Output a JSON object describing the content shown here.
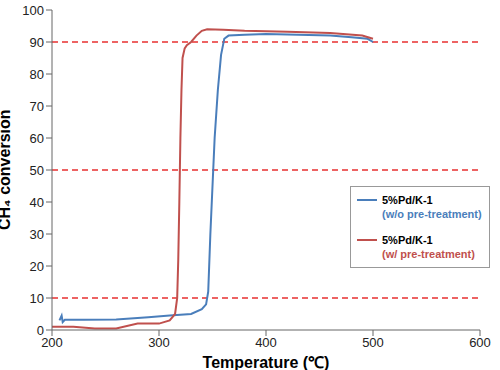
{
  "chart_data": {
    "type": "line",
    "x_label": "Temperature (℃)",
    "y_label": "CH₄ conversion",
    "xlim": [
      200,
      600
    ],
    "xticks": [
      200,
      300,
      400,
      500,
      600
    ],
    "ylim": [
      0,
      100
    ],
    "yticks": [
      0,
      10,
      20,
      30,
      40,
      50,
      60,
      70,
      80,
      90,
      100
    ],
    "grid": false,
    "legend": "right",
    "reference_lines": [
      10,
      50,
      90
    ],
    "reference_color": "#e83030",
    "series": [
      {
        "name": "5%Pd/K-1\n(w/o pre-treatment)",
        "color": "#4a7ebb",
        "x": [
          207,
          209,
          210,
          212,
          230,
          260,
          290,
          310,
          330,
          340,
          344,
          346,
          348,
          350,
          352,
          355,
          358,
          361,
          365,
          380,
          400,
          430,
          460,
          480,
          495,
          500
        ],
        "values": [
          3,
          4.5,
          2.5,
          3.2,
          3.2,
          3.3,
          4,
          4.5,
          5,
          6.5,
          8,
          12,
          30,
          45,
          60,
          75,
          86,
          91,
          92,
          92.3,
          92.5,
          92.3,
          92,
          91.5,
          91,
          90
        ]
      },
      {
        "name": "5%Pd/K-1\n(w/ pre-treatment)",
        "color": "#c0504d",
        "x": [
          200,
          220,
          240,
          260,
          280,
          300,
          310,
          315,
          317,
          318,
          319,
          320,
          321,
          322,
          324,
          326,
          330,
          335,
          340,
          345,
          360,
          380,
          420,
          460,
          490,
          500
        ],
        "values": [
          1,
          1,
          0.5,
          0.5,
          2,
          2,
          3,
          5,
          10,
          22,
          40,
          60,
          75,
          85,
          88,
          89,
          90,
          92,
          93.5,
          94,
          93.8,
          93.5,
          93.2,
          92.8,
          92,
          91
        ]
      }
    ]
  }
}
